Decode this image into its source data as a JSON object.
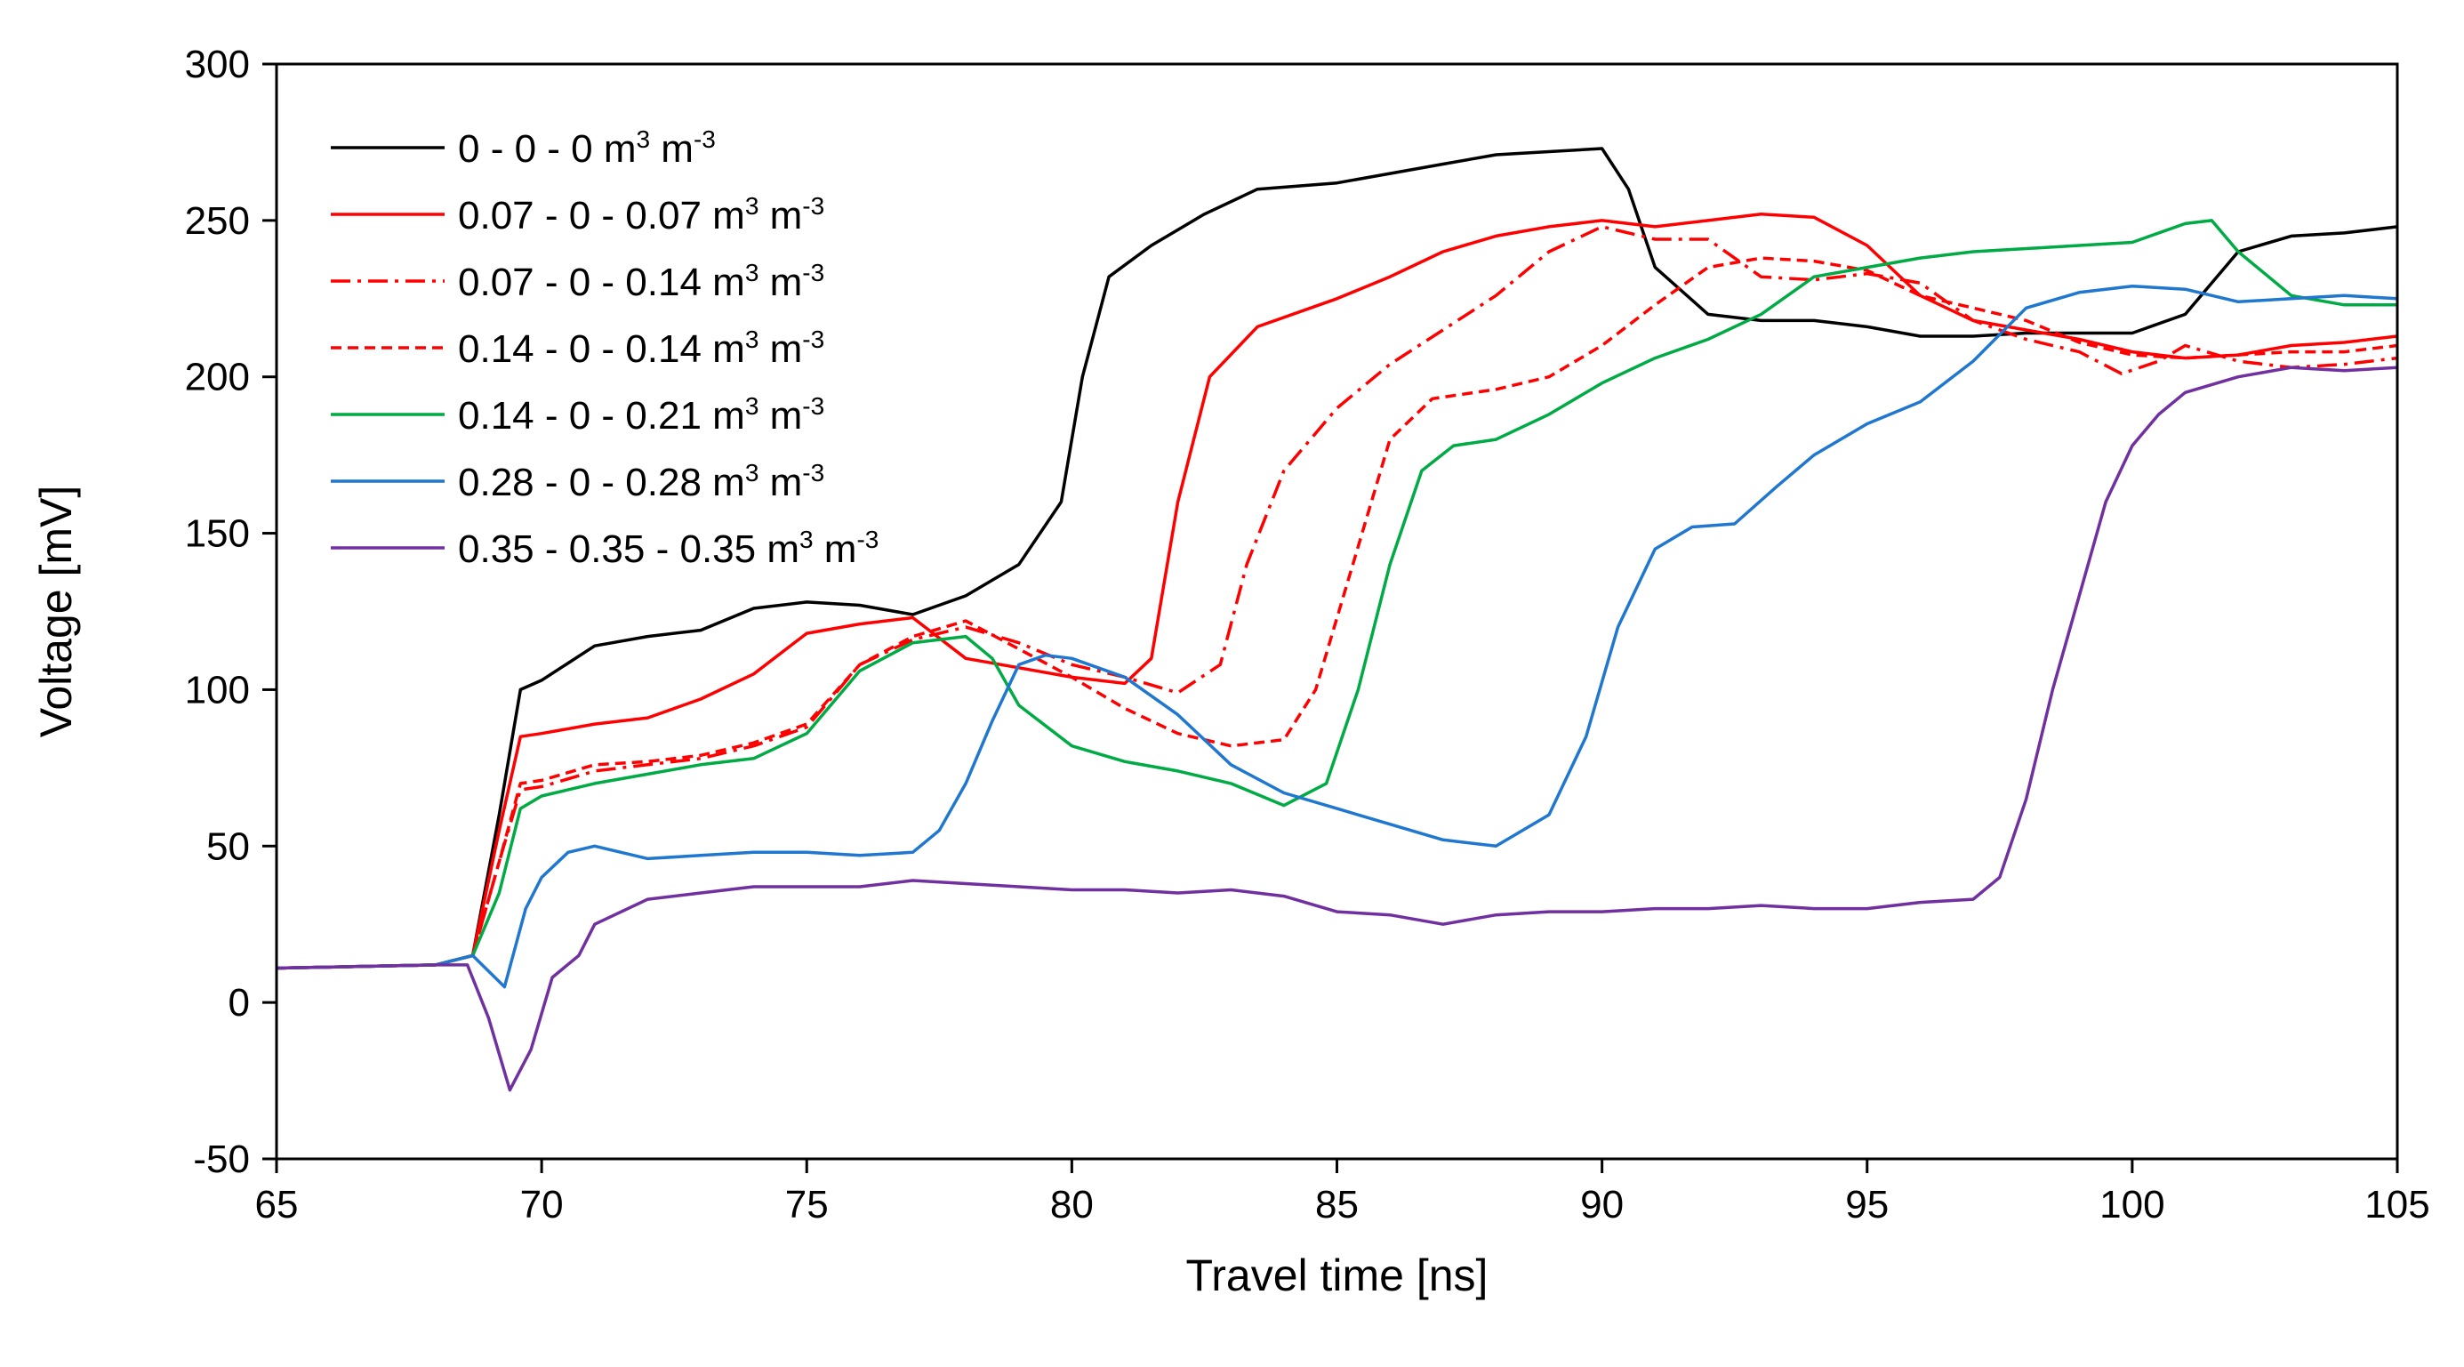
{
  "chart_data": {
    "type": "line",
    "title": "",
    "xlabel": "Travel time [ns]",
    "ylabel": "Voltage [mV]",
    "xlim": [
      65,
      105
    ],
    "ylim": [
      -50,
      300
    ],
    "xticks": [
      65,
      70,
      75,
      80,
      85,
      90,
      95,
      100,
      105
    ],
    "yticks": [
      -50,
      0,
      50,
      100,
      150,
      200,
      250,
      300
    ],
    "grid": false,
    "legend_position": "top-left",
    "legend_unit": {
      "base": "m",
      "exp1": "3",
      "mid": " m",
      "exp2": "-3"
    },
    "series": [
      {
        "name": "0 - 0 - 0",
        "color": "#000000",
        "dash": "solid",
        "points": [
          [
            65,
            11
          ],
          [
            68,
            12
          ],
          [
            68.7,
            15
          ],
          [
            69.2,
            60
          ],
          [
            69.6,
            100
          ],
          [
            70,
            103
          ],
          [
            71,
            114
          ],
          [
            72,
            117
          ],
          [
            73,
            119
          ],
          [
            74,
            126
          ],
          [
            75,
            128
          ],
          [
            76,
            127
          ],
          [
            77,
            124
          ],
          [
            78,
            130
          ],
          [
            79,
            140
          ],
          [
            79.8,
            160
          ],
          [
            80.2,
            200
          ],
          [
            80.7,
            232
          ],
          [
            81.5,
            242
          ],
          [
            82.5,
            252
          ],
          [
            83.5,
            260
          ],
          [
            85,
            262
          ],
          [
            86,
            265
          ],
          [
            87,
            268
          ],
          [
            88,
            271
          ],
          [
            89,
            272
          ],
          [
            90,
            273
          ],
          [
            90.5,
            260
          ],
          [
            91,
            235
          ],
          [
            92,
            220
          ],
          [
            93,
            218
          ],
          [
            94,
            218
          ],
          [
            95,
            216
          ],
          [
            96,
            213
          ],
          [
            97,
            213
          ],
          [
            98,
            214
          ],
          [
            99,
            214
          ],
          [
            100,
            214
          ],
          [
            101,
            220
          ],
          [
            102,
            240
          ],
          [
            103,
            245
          ],
          [
            104,
            246
          ],
          [
            105,
            248
          ]
        ]
      },
      {
        "name": "0.07 - 0 - 0.07",
        "color": "#ff0000",
        "dash": "solid",
        "points": [
          [
            65,
            11
          ],
          [
            68,
            12
          ],
          [
            68.7,
            15
          ],
          [
            69.2,
            55
          ],
          [
            69.6,
            85
          ],
          [
            70,
            86
          ],
          [
            71,
            89
          ],
          [
            72,
            91
          ],
          [
            73,
            97
          ],
          [
            74,
            105
          ],
          [
            75,
            118
          ],
          [
            76,
            121
          ],
          [
            77,
            123
          ],
          [
            78,
            110
          ],
          [
            79,
            107
          ],
          [
            80,
            104
          ],
          [
            81,
            102
          ],
          [
            81.5,
            110
          ],
          [
            82,
            160
          ],
          [
            82.6,
            200
          ],
          [
            83.5,
            216
          ],
          [
            85,
            225
          ],
          [
            86,
            232
          ],
          [
            87,
            240
          ],
          [
            88,
            245
          ],
          [
            89,
            248
          ],
          [
            90,
            250
          ],
          [
            91,
            248
          ],
          [
            92,
            250
          ],
          [
            93,
            252
          ],
          [
            94,
            251
          ],
          [
            95,
            242
          ],
          [
            96,
            226
          ],
          [
            97,
            218
          ],
          [
            98,
            215
          ],
          [
            99,
            212
          ],
          [
            100,
            208
          ],
          [
            101,
            206
          ],
          [
            102,
            207
          ],
          [
            103,
            210
          ],
          [
            104,
            211
          ],
          [
            105,
            213
          ]
        ]
      },
      {
        "name": "0.07 - 0 - 0.14",
        "color": "#ff0000",
        "dash": "dashdot",
        "points": [
          [
            65,
            11
          ],
          [
            68,
            12
          ],
          [
            68.7,
            15
          ],
          [
            69.2,
            45
          ],
          [
            69.6,
            68
          ],
          [
            70,
            69
          ],
          [
            71,
            74
          ],
          [
            72,
            76
          ],
          [
            73,
            78
          ],
          [
            74,
            82
          ],
          [
            75,
            88
          ],
          [
            76,
            108
          ],
          [
            77,
            116
          ],
          [
            78,
            120
          ],
          [
            79,
            115
          ],
          [
            80,
            108
          ],
          [
            81,
            104
          ],
          [
            82,
            99
          ],
          [
            82.8,
            108
          ],
          [
            83.3,
            140
          ],
          [
            84,
            170
          ],
          [
            85,
            190
          ],
          [
            86,
            204
          ],
          [
            87,
            215
          ],
          [
            88,
            226
          ],
          [
            89,
            240
          ],
          [
            90,
            248
          ],
          [
            91,
            244
          ],
          [
            92,
            244
          ],
          [
            93,
            232
          ],
          [
            94,
            231
          ],
          [
            95,
            233
          ],
          [
            96,
            230
          ],
          [
            97,
            218
          ],
          [
            98,
            212
          ],
          [
            99,
            208
          ],
          [
            99.8,
            201
          ],
          [
            100.5,
            205
          ],
          [
            101,
            210
          ],
          [
            102,
            205
          ],
          [
            103,
            203
          ],
          [
            104,
            204
          ],
          [
            105,
            206
          ]
        ]
      },
      {
        "name": "0.14 - 0 - 0.14",
        "color": "#ff0000",
        "dash": "dashed",
        "points": [
          [
            65,
            11
          ],
          [
            68,
            12
          ],
          [
            68.7,
            15
          ],
          [
            69.2,
            45
          ],
          [
            69.6,
            70
          ],
          [
            70,
            71
          ],
          [
            71,
            76
          ],
          [
            72,
            77
          ],
          [
            73,
            79
          ],
          [
            74,
            83
          ],
          [
            75,
            89
          ],
          [
            76,
            108
          ],
          [
            77,
            117
          ],
          [
            78,
            122
          ],
          [
            79,
            113
          ],
          [
            80,
            104
          ],
          [
            81,
            94
          ],
          [
            82,
            86
          ],
          [
            83,
            82
          ],
          [
            84,
            84
          ],
          [
            84.6,
            100
          ],
          [
            85.3,
            140
          ],
          [
            86,
            180
          ],
          [
            86.8,
            193
          ],
          [
            88,
            196
          ],
          [
            89,
            200
          ],
          [
            90,
            210
          ],
          [
            91,
            223
          ],
          [
            92,
            235
          ],
          [
            93,
            238
          ],
          [
            94,
            237
          ],
          [
            95,
            234
          ],
          [
            96,
            226
          ],
          [
            97,
            222
          ],
          [
            98,
            218
          ],
          [
            99,
            211
          ],
          [
            100,
            207
          ],
          [
            101,
            206
          ],
          [
            102,
            207
          ],
          [
            103,
            208
          ],
          [
            104,
            208
          ],
          [
            105,
            210
          ]
        ]
      },
      {
        "name": "0.14 - 0 - 0.21",
        "color": "#00aa44",
        "dash": "solid",
        "points": [
          [
            65,
            11
          ],
          [
            68,
            12
          ],
          [
            68.7,
            15
          ],
          [
            69.2,
            35
          ],
          [
            69.6,
            62
          ],
          [
            70,
            66
          ],
          [
            71,
            70
          ],
          [
            72,
            73
          ],
          [
            73,
            76
          ],
          [
            74,
            78
          ],
          [
            75,
            86
          ],
          [
            76,
            106
          ],
          [
            77,
            115
          ],
          [
            78,
            117
          ],
          [
            78.5,
            110
          ],
          [
            79,
            95
          ],
          [
            80,
            82
          ],
          [
            81,
            77
          ],
          [
            82,
            74
          ],
          [
            83,
            70
          ],
          [
            84,
            63
          ],
          [
            84.8,
            70
          ],
          [
            85.4,
            100
          ],
          [
            86,
            140
          ],
          [
            86.6,
            170
          ],
          [
            87.2,
            178
          ],
          [
            88,
            180
          ],
          [
            89,
            188
          ],
          [
            90,
            198
          ],
          [
            91,
            206
          ],
          [
            92,
            212
          ],
          [
            93,
            220
          ],
          [
            94,
            232
          ],
          [
            95,
            235
          ],
          [
            96,
            238
          ],
          [
            97,
            240
          ],
          [
            98,
            241
          ],
          [
            99,
            242
          ],
          [
            100,
            243
          ],
          [
            101,
            249
          ],
          [
            101.5,
            250
          ],
          [
            102,
            240
          ],
          [
            103,
            226
          ],
          [
            104,
            223
          ],
          [
            105,
            223
          ]
        ]
      },
      {
        "name": "0.28 - 0 - 0.28",
        "color": "#1f77cf",
        "dash": "solid",
        "points": [
          [
            65,
            11
          ],
          [
            68,
            12
          ],
          [
            68.7,
            15
          ],
          [
            69,
            10
          ],
          [
            69.3,
            5
          ],
          [
            69.7,
            30
          ],
          [
            70,
            40
          ],
          [
            70.5,
            48
          ],
          [
            71,
            50
          ],
          [
            72,
            46
          ],
          [
            73,
            47
          ],
          [
            74,
            48
          ],
          [
            75,
            48
          ],
          [
            76,
            47
          ],
          [
            77,
            48
          ],
          [
            77.5,
            55
          ],
          [
            78,
            70
          ],
          [
            78.5,
            90
          ],
          [
            79,
            108
          ],
          [
            79.5,
            111
          ],
          [
            80,
            110
          ],
          [
            81,
            104
          ],
          [
            82,
            92
          ],
          [
            83,
            76
          ],
          [
            84,
            67
          ],
          [
            85,
            62
          ],
          [
            86,
            57
          ],
          [
            87,
            52
          ],
          [
            88,
            50
          ],
          [
            89,
            60
          ],
          [
            89.7,
            85
          ],
          [
            90.3,
            120
          ],
          [
            91,
            145
          ],
          [
            91.7,
            152
          ],
          [
            92.5,
            153
          ],
          [
            93.3,
            165
          ],
          [
            94,
            175
          ],
          [
            95,
            185
          ],
          [
            96,
            192
          ],
          [
            97,
            205
          ],
          [
            98,
            222
          ],
          [
            99,
            227
          ],
          [
            100,
            229
          ],
          [
            101,
            228
          ],
          [
            102,
            224
          ],
          [
            103,
            225
          ],
          [
            104,
            226
          ],
          [
            105,
            225
          ]
        ]
      },
      {
        "name": "0.35 - 0.35 - 0.35",
        "color": "#7030a0",
        "dash": "solid",
        "points": [
          [
            65,
            11
          ],
          [
            68,
            12
          ],
          [
            68.6,
            12
          ],
          [
            69,
            -5
          ],
          [
            69.4,
            -28
          ],
          [
            69.8,
            -15
          ],
          [
            70.2,
            8
          ],
          [
            70.7,
            15
          ],
          [
            71,
            25
          ],
          [
            72,
            33
          ],
          [
            73,
            35
          ],
          [
            74,
            37
          ],
          [
            75,
            37
          ],
          [
            76,
            37
          ],
          [
            77,
            39
          ],
          [
            78,
            38
          ],
          [
            79,
            37
          ],
          [
            80,
            36
          ],
          [
            81,
            36
          ],
          [
            82,
            35
          ],
          [
            83,
            36
          ],
          [
            84,
            34
          ],
          [
            85,
            29
          ],
          [
            86,
            28
          ],
          [
            87,
            25
          ],
          [
            88,
            28
          ],
          [
            89,
            29
          ],
          [
            90,
            29
          ],
          [
            91,
            30
          ],
          [
            92,
            30
          ],
          [
            93,
            31
          ],
          [
            94,
            30
          ],
          [
            95,
            30
          ],
          [
            96,
            32
          ],
          [
            97,
            33
          ],
          [
            97.5,
            40
          ],
          [
            98,
            65
          ],
          [
            98.5,
            100
          ],
          [
            99,
            130
          ],
          [
            99.5,
            160
          ],
          [
            100,
            178
          ],
          [
            100.5,
            188
          ],
          [
            101,
            195
          ],
          [
            102,
            200
          ],
          [
            103,
            203
          ],
          [
            104,
            202
          ],
          [
            105,
            203
          ]
        ]
      }
    ]
  }
}
